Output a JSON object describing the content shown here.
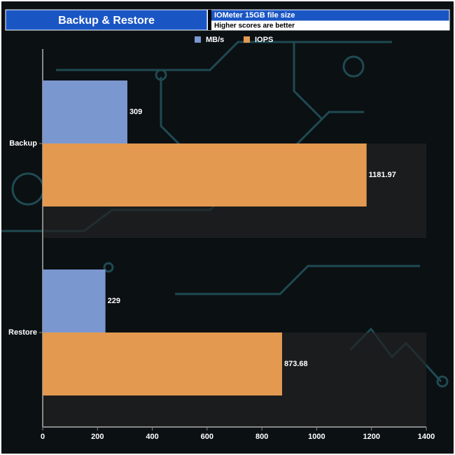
{
  "chart_data": {
    "type": "hbar",
    "title": "Backup & Restore",
    "subtitle": "IOMeter 15GB file size",
    "note": "Higher scores are better",
    "categories": [
      "Backup",
      "Restore"
    ],
    "series": [
      {
        "name": "MB/s",
        "color": "#7b97d0",
        "values": [
          309,
          229
        ]
      },
      {
        "name": "IOPS",
        "color": "#e39a50",
        "values": [
          1181.97,
          873.68
        ]
      }
    ],
    "xlim": [
      0,
      1400
    ],
    "xticks": [
      0,
      200,
      400,
      600,
      800,
      1000,
      1200,
      1400
    ],
    "legend": "top"
  }
}
